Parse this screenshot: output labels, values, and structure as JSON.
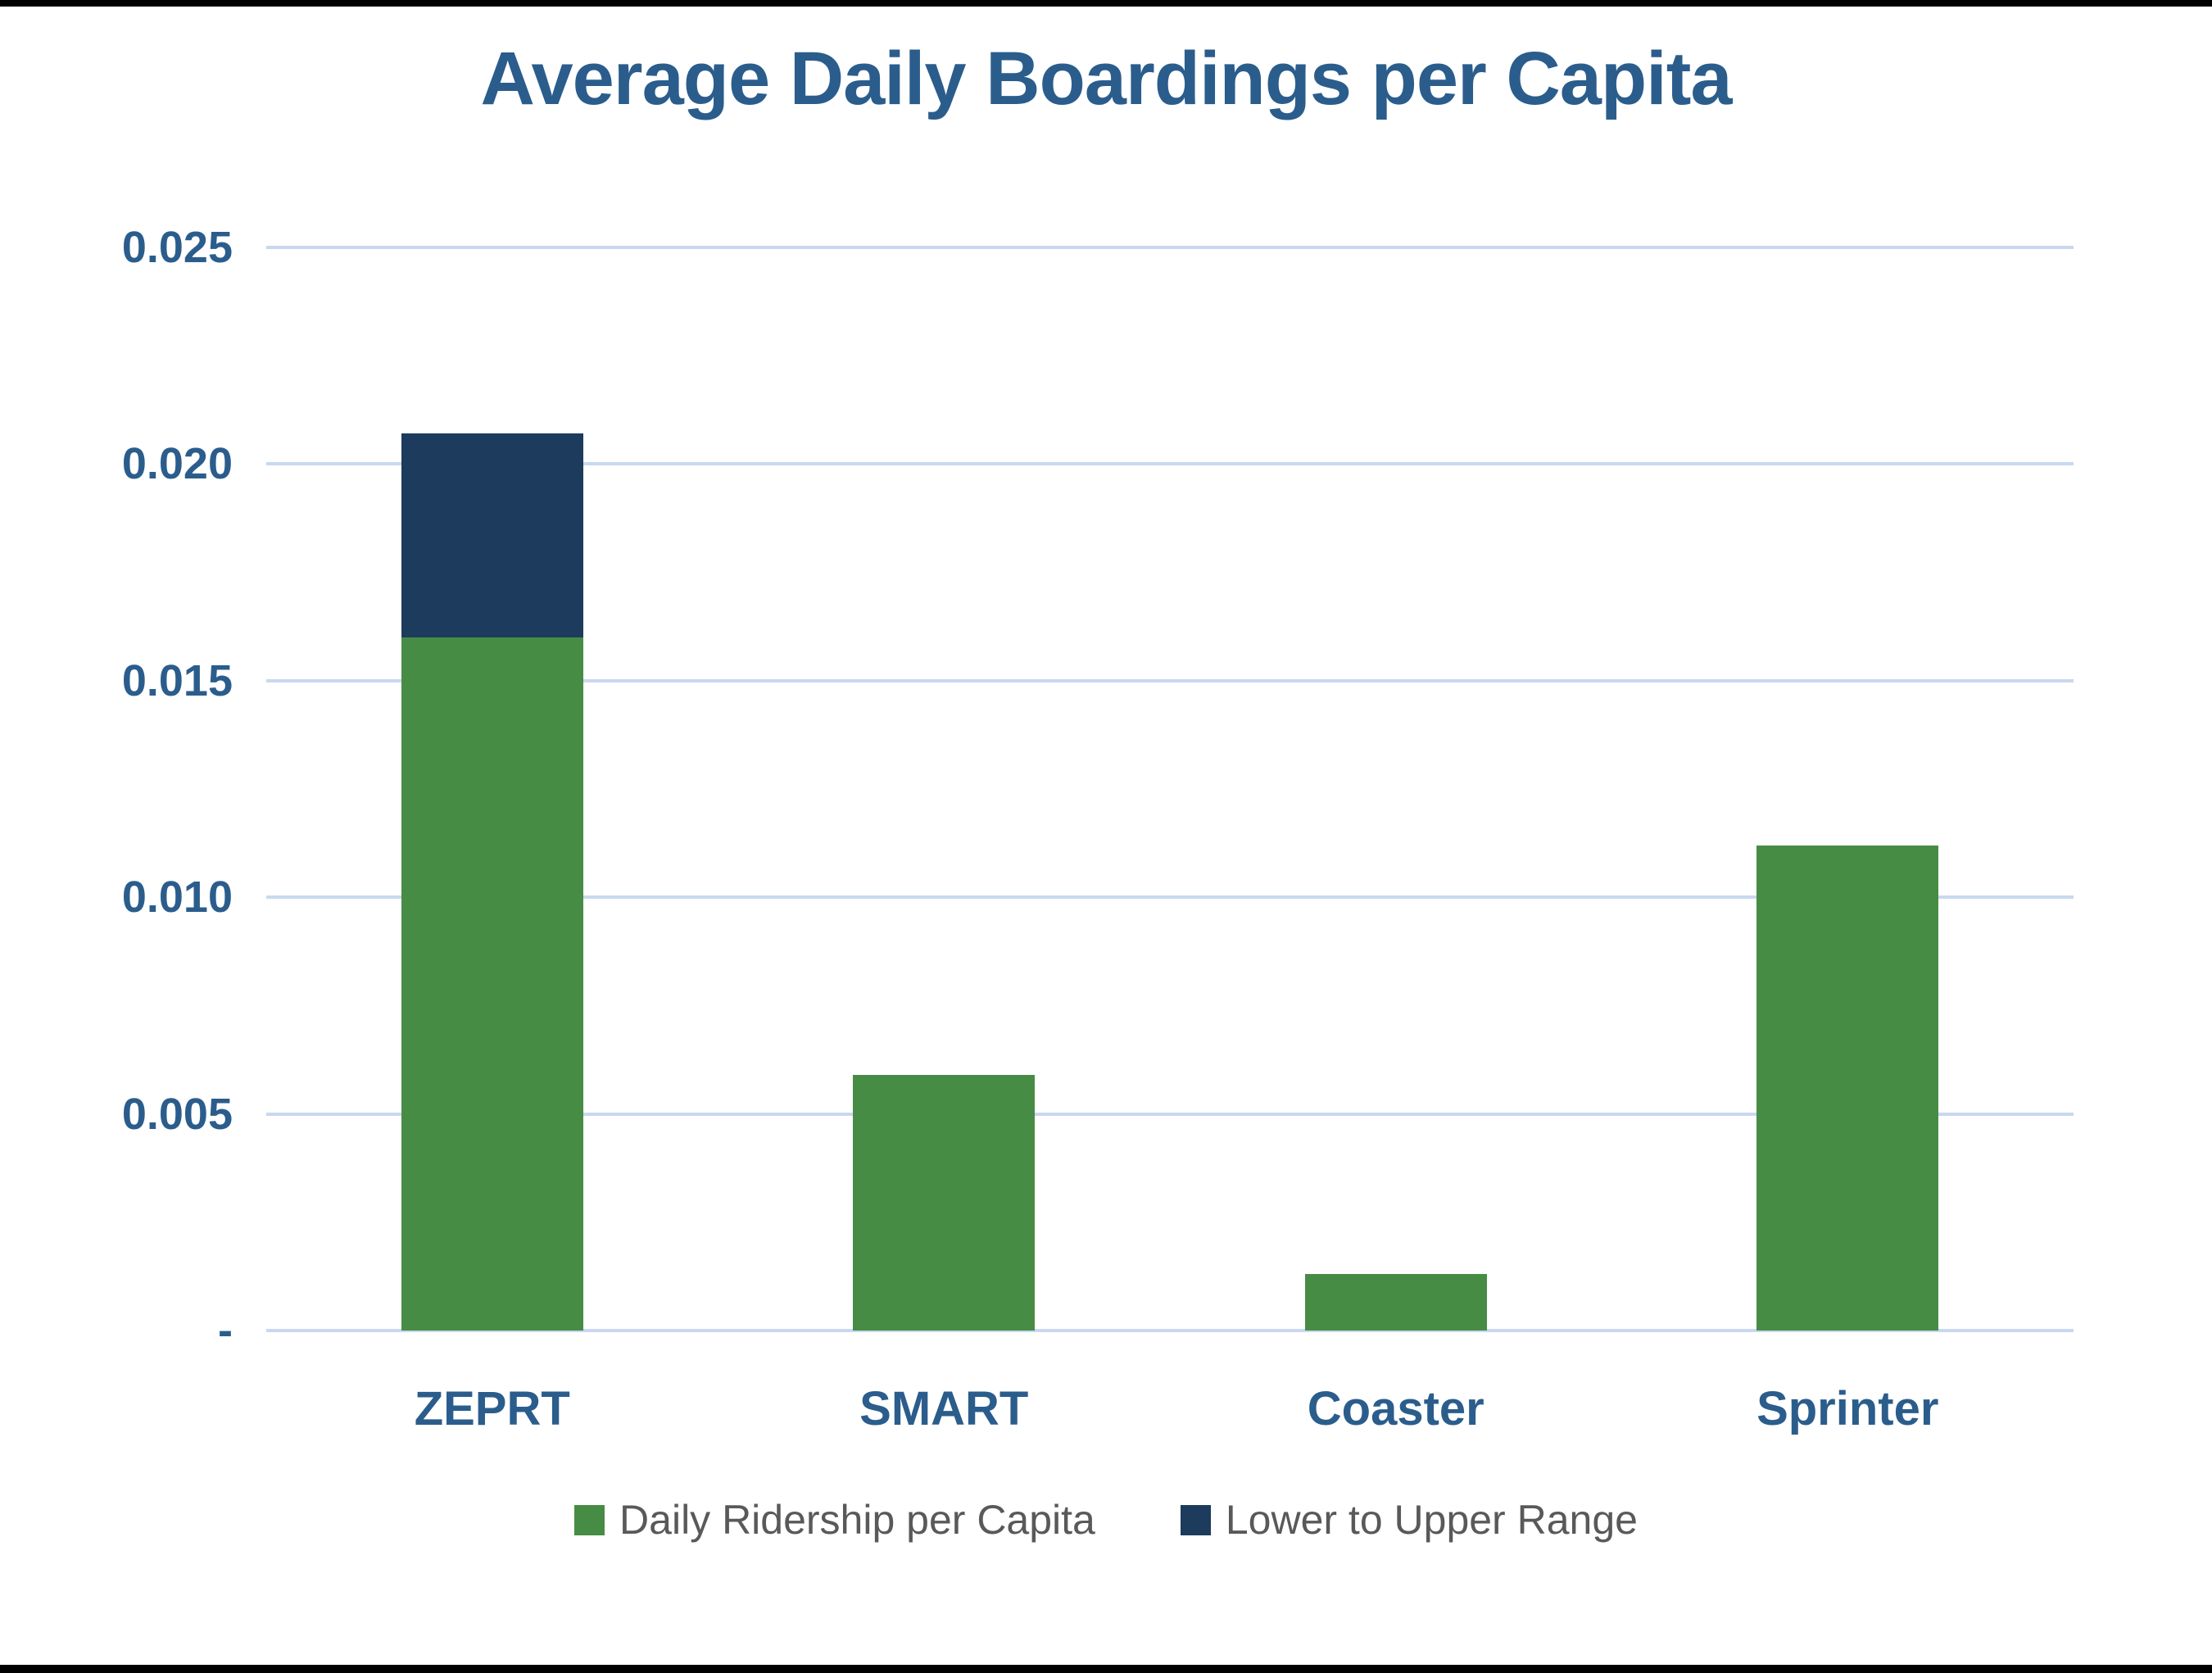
{
  "chart_data": {
    "type": "bar",
    "stacked": true,
    "title": "Average Daily Boardings per Capita",
    "categories": [
      "ZEPRT",
      "SMART",
      "Coaster",
      "Sprinter"
    ],
    "series": [
      {
        "name": "Daily Ridership per Capita",
        "color": "#478C45",
        "values": [
          0.016,
          0.0059,
          0.0013,
          0.0112
        ]
      },
      {
        "name": "Lower to Upper Range",
        "color": "#1D3B5C",
        "values": [
          0.0047,
          0,
          0,
          0
        ]
      }
    ],
    "ylim": [
      0,
      0.025
    ],
    "yticks": [
      {
        "value": 0.025,
        "label": "0.025"
      },
      {
        "value": 0.02,
        "label": "0.020"
      },
      {
        "value": 0.015,
        "label": "0.015"
      },
      {
        "value": 0.01,
        "label": "0.010"
      },
      {
        "value": 0.005,
        "label": "0.005"
      },
      {
        "value": 0,
        "label": "-"
      }
    ],
    "grid": "horizontal",
    "legend_position": "bottom",
    "xlabel": "",
    "ylabel": ""
  },
  "styles": {
    "title_color": "#2B5D8C",
    "tick_color": "#2B5D8C",
    "gridline_color": "#C8D8F0",
    "legend_text_color": "#595959",
    "frame_band_color": "#000000",
    "background": "#FFFFFF"
  }
}
